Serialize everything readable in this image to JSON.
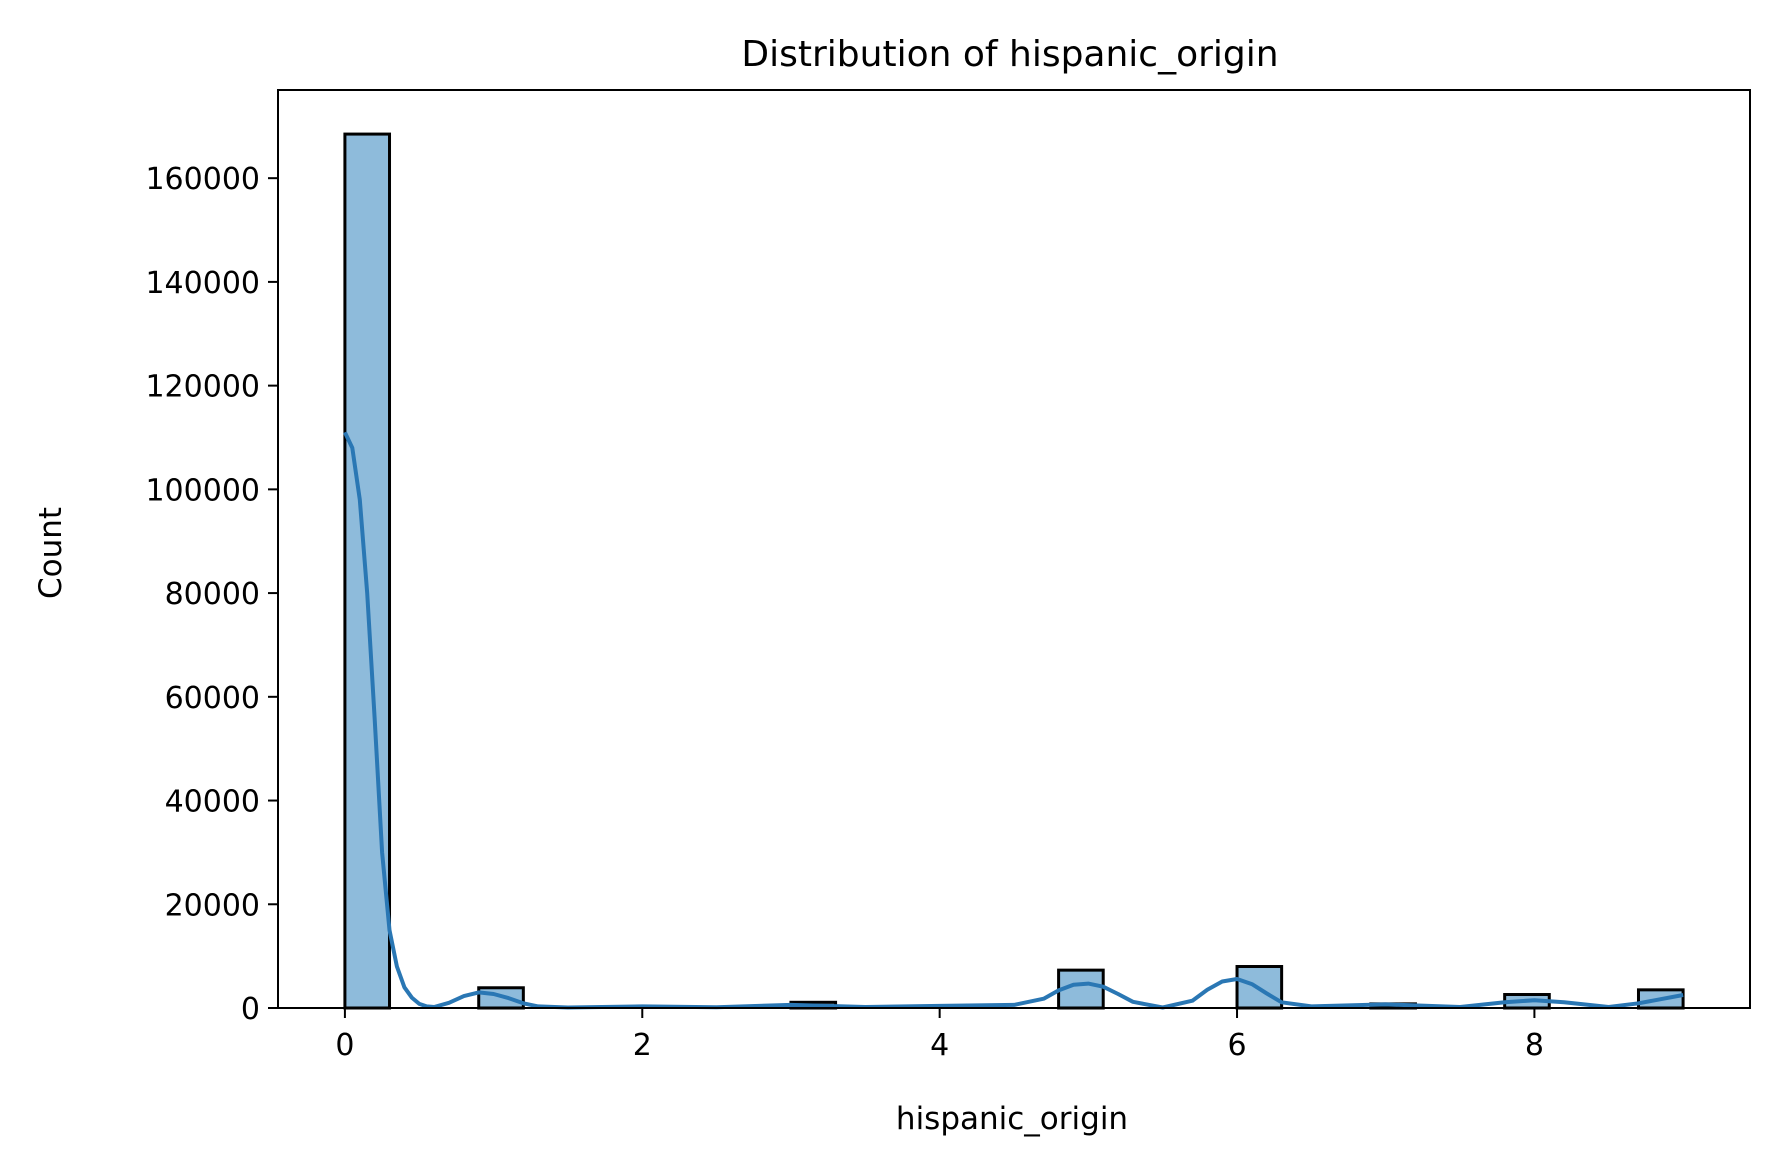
{
  "chart_data": {
    "type": "bar",
    "title": "Distribution of hispanic_origin",
    "xlabel": "hispanic_origin",
    "ylabel": "Count",
    "xlim": [
      -0.45,
      9.45
    ],
    "ylim": [
      0,
      177000
    ],
    "x_ticks": [
      0,
      2,
      4,
      6,
      8
    ],
    "y_ticks": [
      0,
      20000,
      40000,
      60000,
      80000,
      100000,
      120000,
      140000,
      160000
    ],
    "bin_edges": [
      0,
      0.3,
      0.6,
      0.9,
      1.2,
      1.5,
      1.8,
      2.1,
      2.4,
      2.7,
      3.0,
      3.3,
      3.6,
      3.9,
      4.2,
      4.5,
      4.8,
      5.1,
      5.4,
      5.7,
      6.0,
      6.3,
      6.6,
      6.9,
      7.2,
      7.5,
      7.8,
      8.1,
      8.4,
      8.7,
      9.0
    ],
    "counts": [
      168500,
      0,
      0,
      3900,
      0,
      0,
      0,
      0,
      0,
      0,
      1100,
      0,
      0,
      0,
      0,
      0,
      7300,
      0,
      0,
      0,
      8000,
      0,
      0,
      800,
      0,
      0,
      2600,
      0,
      0,
      3500
    ],
    "kde": {
      "name": "KDE",
      "x": [
        0,
        0.05,
        0.1,
        0.15,
        0.2,
        0.25,
        0.3,
        0.35,
        0.4,
        0.45,
        0.5,
        0.55,
        0.6,
        0.7,
        0.8,
        0.9,
        1.0,
        1.1,
        1.2,
        1.3,
        1.5,
        2.0,
        2.5,
        3.0,
        3.5,
        4.0,
        4.5,
        4.7,
        4.8,
        4.9,
        5.0,
        5.1,
        5.2,
        5.3,
        5.5,
        5.7,
        5.8,
        5.9,
        6.0,
        6.1,
        6.2,
        6.3,
        6.5,
        7.0,
        7.5,
        7.8,
        8.0,
        8.2,
        8.5,
        8.7,
        9.0
      ],
      "y": [
        111000,
        108000,
        98000,
        80000,
        56000,
        30000,
        15000,
        8000,
        4000,
        2000,
        800,
        300,
        200,
        1000,
        2300,
        3000,
        2700,
        1900,
        900,
        300,
        100,
        300,
        150,
        600,
        200,
        400,
        600,
        1800,
        3400,
        4500,
        4700,
        4100,
        2700,
        1200,
        100,
        1400,
        3500,
        5100,
        5600,
        4600,
        2800,
        1100,
        300,
        700,
        200,
        1100,
        1500,
        1100,
        200,
        900,
        2500
      ],
      "color": "#2a77b4"
    },
    "bar_fill": "#8ebbdb",
    "bar_edge": "#000000",
    "grid": false
  }
}
